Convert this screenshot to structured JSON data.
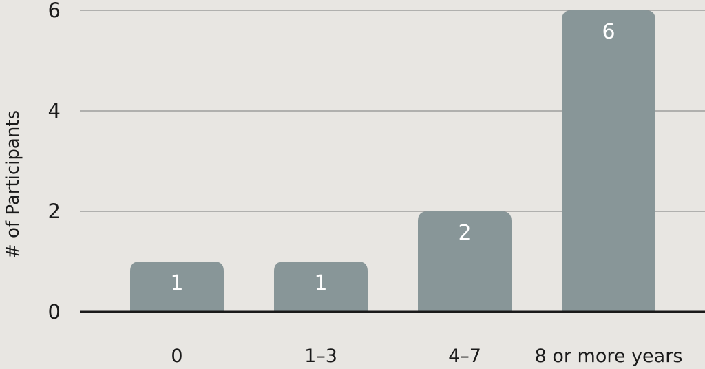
{
  "chart_data": {
    "type": "bar",
    "title": "",
    "xlabel": "",
    "ylabel": "# of Participants",
    "categories": [
      "0",
      "1–3",
      "4–7",
      "8 or more years"
    ],
    "values": [
      1,
      1,
      2,
      6
    ],
    "ylim": [
      0,
      6
    ],
    "yticks": [
      0,
      2,
      4,
      6
    ],
    "grid": true,
    "legend": "none",
    "colors": {
      "background": "#e8e6e2",
      "bar": "#889698",
      "grid": "#8f8f8f",
      "axis": "#1a1a1a",
      "data_label": "#ffffff"
    }
  }
}
